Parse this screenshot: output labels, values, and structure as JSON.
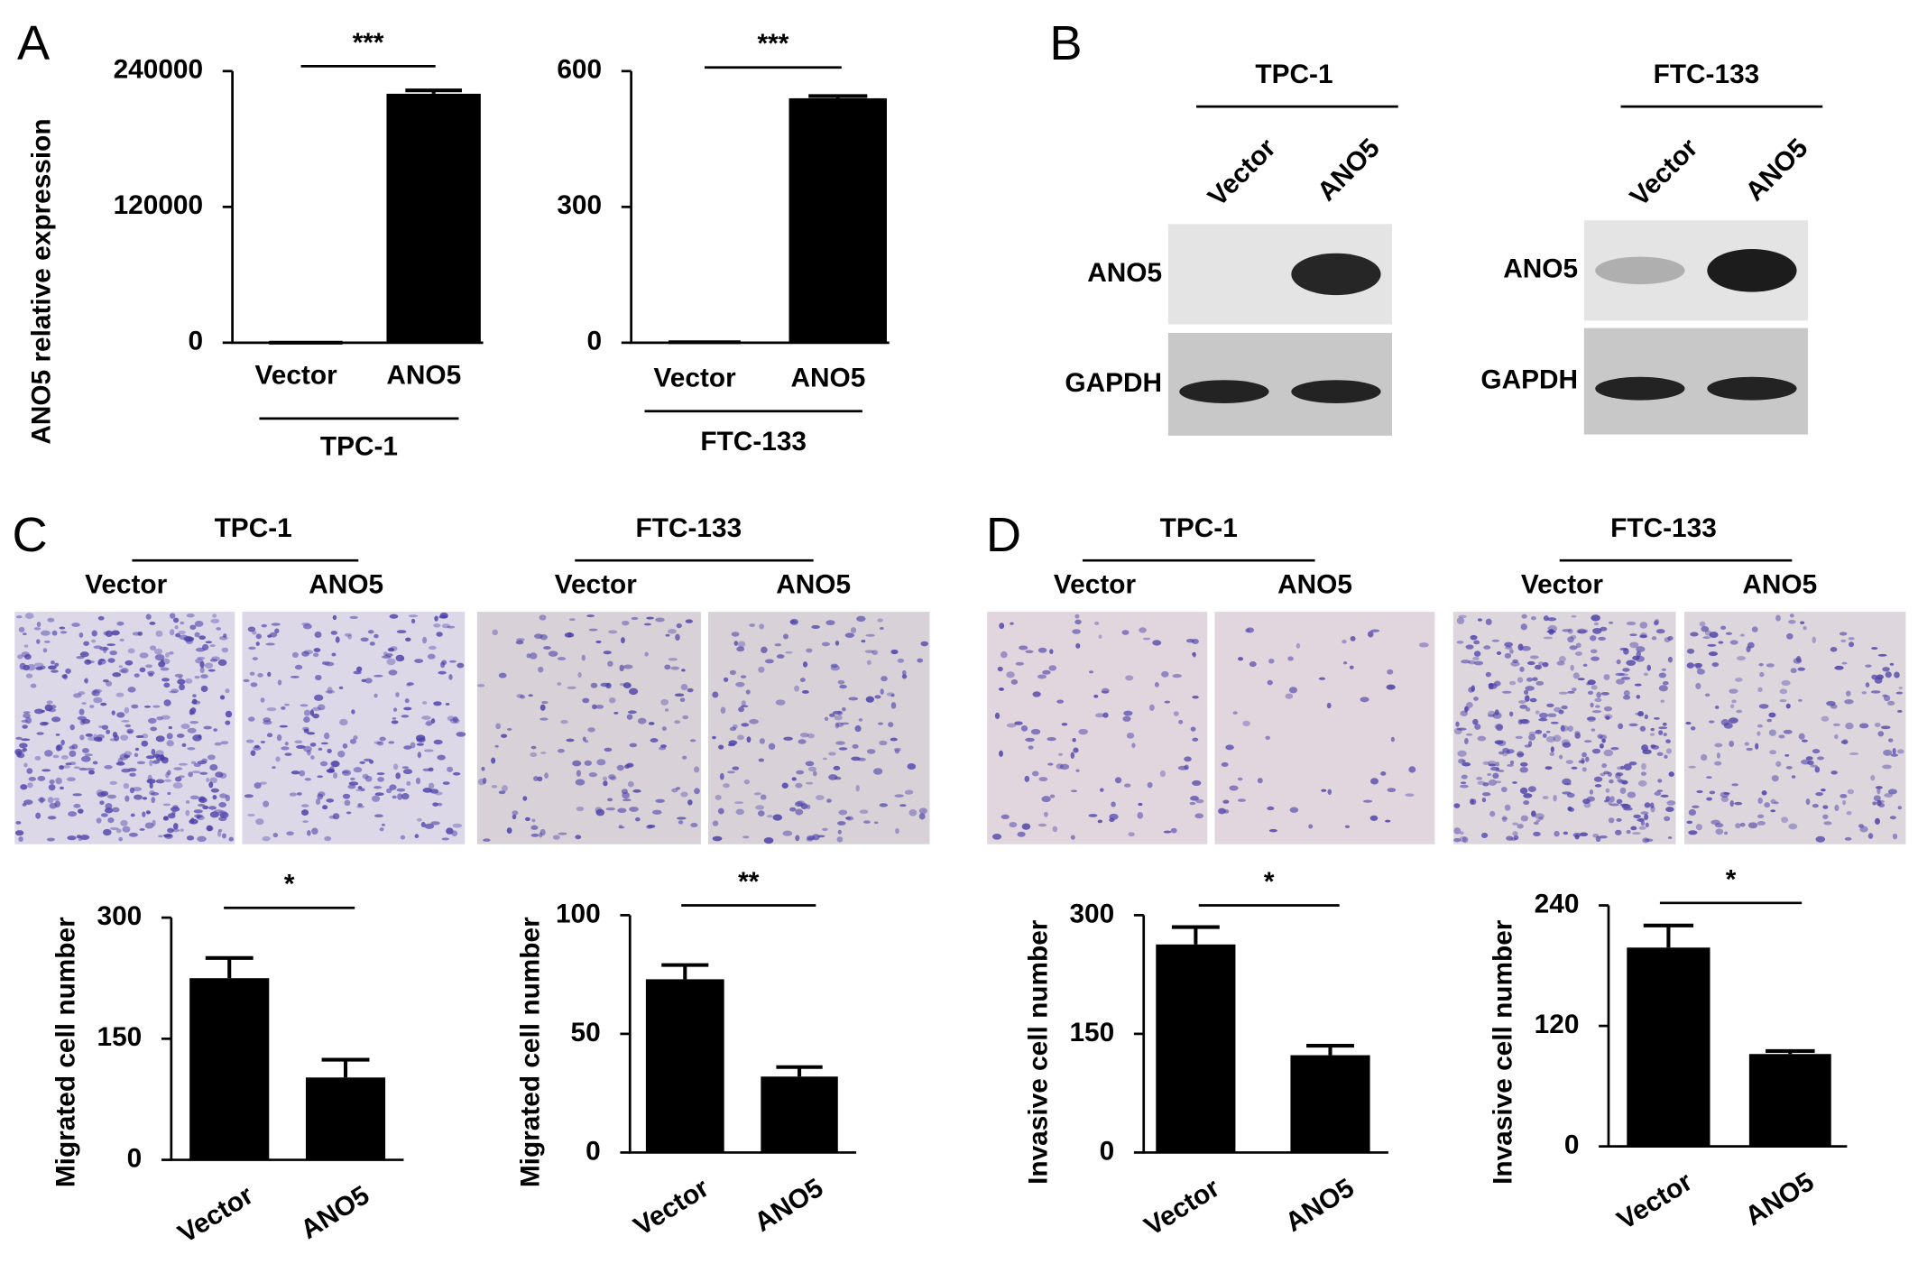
{
  "panel_labels": [
    "A",
    "B",
    "C",
    "D"
  ],
  "chart_data": [
    {
      "type": "bar",
      "y_label": "ANO5 relative expression",
      "group_label": "TPC-1",
      "significance": "***",
      "categories": [
        "Vector",
        "ANO5"
      ],
      "values": [
        1,
        220000
      ],
      "errors": [
        0,
        3000
      ],
      "color": "#000000",
      "ylim": [
        0,
        240000
      ],
      "yticks": [
        0,
        120000,
        240000
      ]
    },
    {
      "type": "bar",
      "group_label": "FTC-133",
      "significance": "***",
      "categories": [
        "Vector",
        "ANO5"
      ],
      "values": [
        1,
        540
      ],
      "errors": [
        0,
        5
      ],
      "color": "#000000",
      "ylim": [
        0,
        600
      ],
      "yticks": [
        0,
        300,
        600
      ]
    },
    {
      "type": "bar",
      "y_label": "Migrated cell number",
      "significance": "*",
      "categories": [
        "Vector",
        "ANO5"
      ],
      "values": [
        225,
        102
      ],
      "errors": [
        25,
        22
      ],
      "color": "#000000",
      "ylim": [
        0,
        300
      ],
      "yticks": [
        0,
        150,
        300
      ]
    },
    {
      "type": "bar",
      "y_label": "Migrated cell number",
      "significance": "**",
      "categories": [
        "Vector",
        "ANO5"
      ],
      "values": [
        73,
        32
      ],
      "errors": [
        6,
        4
      ],
      "color": "#000000",
      "ylim": [
        0,
        100
      ],
      "yticks": [
        0,
        50,
        100
      ]
    },
    {
      "type": "bar",
      "y_label": "Invasive cell number",
      "significance": "*",
      "categories": [
        "Vector",
        "ANO5"
      ],
      "values": [
        263,
        123
      ],
      "errors": [
        22,
        12
      ],
      "color": "#000000",
      "ylim": [
        0,
        300
      ],
      "yticks": [
        0,
        150,
        300
      ]
    },
    {
      "type": "bar",
      "y_label": "Invasive cell number",
      "significance": "*",
      "categories": [
        "Vector",
        "ANO5"
      ],
      "values": [
        198,
        92
      ],
      "errors": [
        22,
        3
      ],
      "color": "#000000",
      "ylim": [
        0,
        240
      ],
      "yticks": [
        0,
        120,
        240
      ]
    }
  ],
  "blot": {
    "groups": [
      {
        "cell_line": "TPC-1",
        "lanes": [
          "Vector",
          "ANO5"
        ],
        "rows": [
          "ANO5",
          "GAPDH"
        ]
      },
      {
        "cell_line": "FTC-133",
        "lanes": [
          "Vector",
          "ANO5"
        ],
        "rows": [
          "ANO5",
          "GAPDH"
        ]
      }
    ]
  },
  "images": {
    "C": [
      {
        "cell_line": "TPC-1",
        "conditions": [
          "Vector",
          "ANO5"
        ]
      },
      {
        "cell_line": "FTC-133",
        "conditions": [
          "Vector",
          "ANO5"
        ]
      }
    ],
    "D": [
      {
        "cell_line": "TPC-1",
        "conditions": [
          "Vector",
          "ANO5"
        ]
      },
      {
        "cell_line": "FTC-133",
        "conditions": [
          "Vector",
          "ANO5"
        ]
      }
    ]
  }
}
